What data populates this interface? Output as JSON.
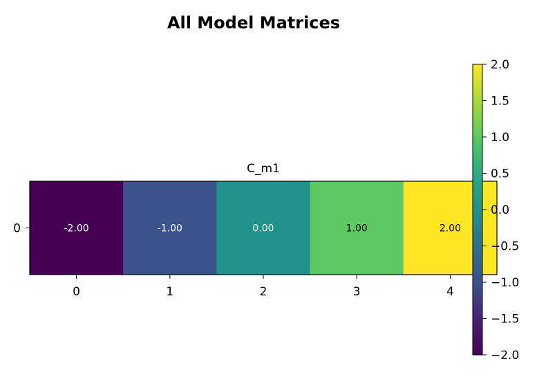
{
  "figure": {
    "suptitle": "All Model Matrices"
  },
  "chart_data": {
    "type": "heatmap",
    "title": "C_m1",
    "rows": [
      "0"
    ],
    "columns": [
      "0",
      "1",
      "2",
      "3",
      "4"
    ],
    "values": [
      [
        -2.0,
        -1.0,
        0.0,
        1.0,
        2.0
      ]
    ],
    "cell_labels": [
      [
        "-2.00",
        "-1.00",
        "0.00",
        "1.00",
        "2.00"
      ]
    ],
    "colormap": "viridis",
    "colorbar": {
      "vmin": -2.0,
      "vmax": 2.0,
      "ticks": [
        -2.0,
        -1.5,
        -1.0,
        -0.5,
        0.0,
        0.5,
        1.0,
        1.5,
        2.0
      ],
      "tick_labels": [
        "−2.0",
        "−1.5",
        "−1.0",
        "−0.5",
        "0.0",
        "0.5",
        "1.0",
        "1.5",
        "2.0"
      ]
    },
    "colors": {
      "low": "#440154",
      "high": "#fde725",
      "label_dark_cells": "#ffffff",
      "label_light_cells": "#000000"
    },
    "xlabel": "",
    "ylabel": ""
  }
}
